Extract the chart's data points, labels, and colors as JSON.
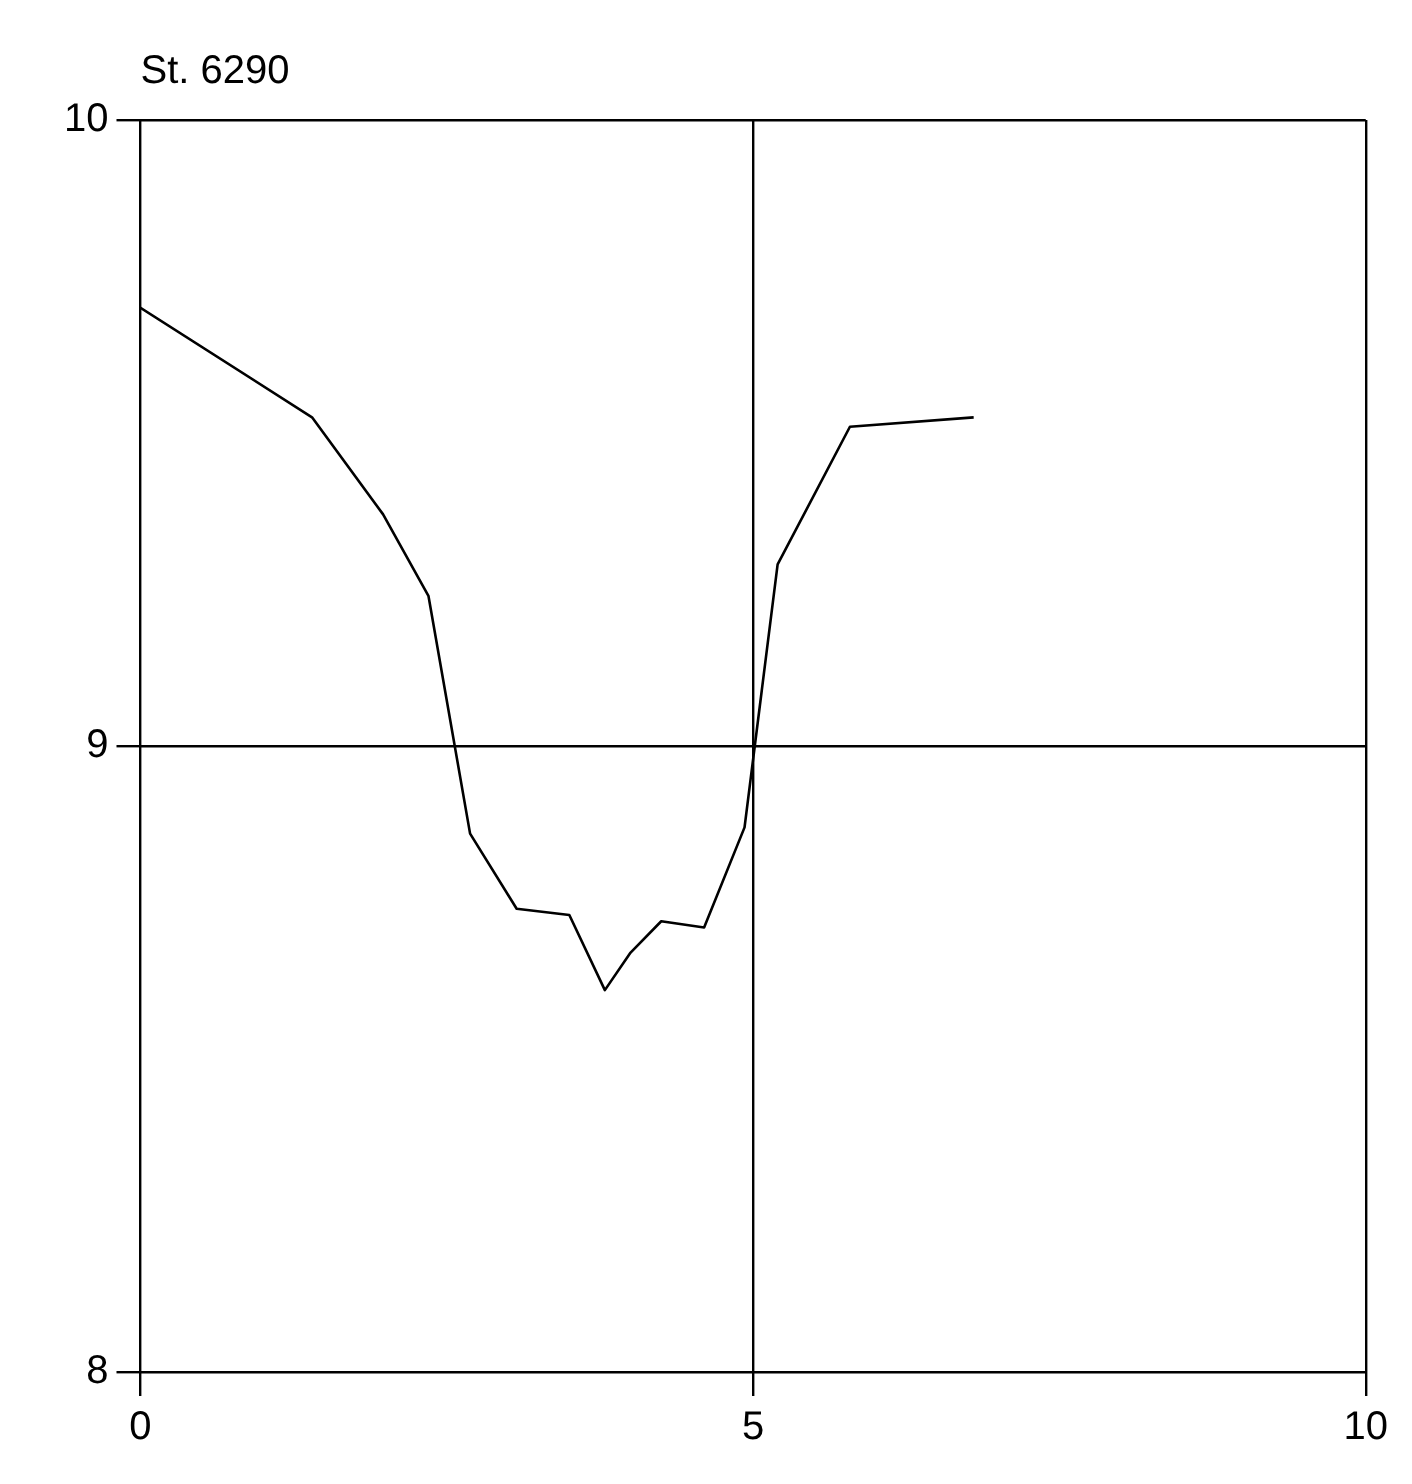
{
  "chart_data": {
    "type": "line",
    "title": "St. 6290",
    "x": [
      0,
      1.4,
      1.98,
      2.35,
      2.69,
      3.07,
      3.5,
      3.79,
      4.0,
      4.25,
      4.6,
      4.93,
      5.2,
      5.79,
      6.8
    ],
    "series": [
      {
        "color": "#000000",
        "values": [
          9.7,
          9.525,
          9.37,
          9.24,
          8.86,
          8.74,
          8.73,
          8.61,
          8.67,
          8.72,
          8.71,
          8.87,
          9.29,
          9.51,
          9.525
        ]
      }
    ],
    "xlim": [
      0,
      10
    ],
    "xticks": [
      0,
      5,
      10
    ],
    "ylim": [
      8,
      10
    ],
    "yticks": [
      8,
      9,
      10
    ],
    "grid": true,
    "legend": false,
    "marker": "none",
    "line_style": "solid"
  }
}
